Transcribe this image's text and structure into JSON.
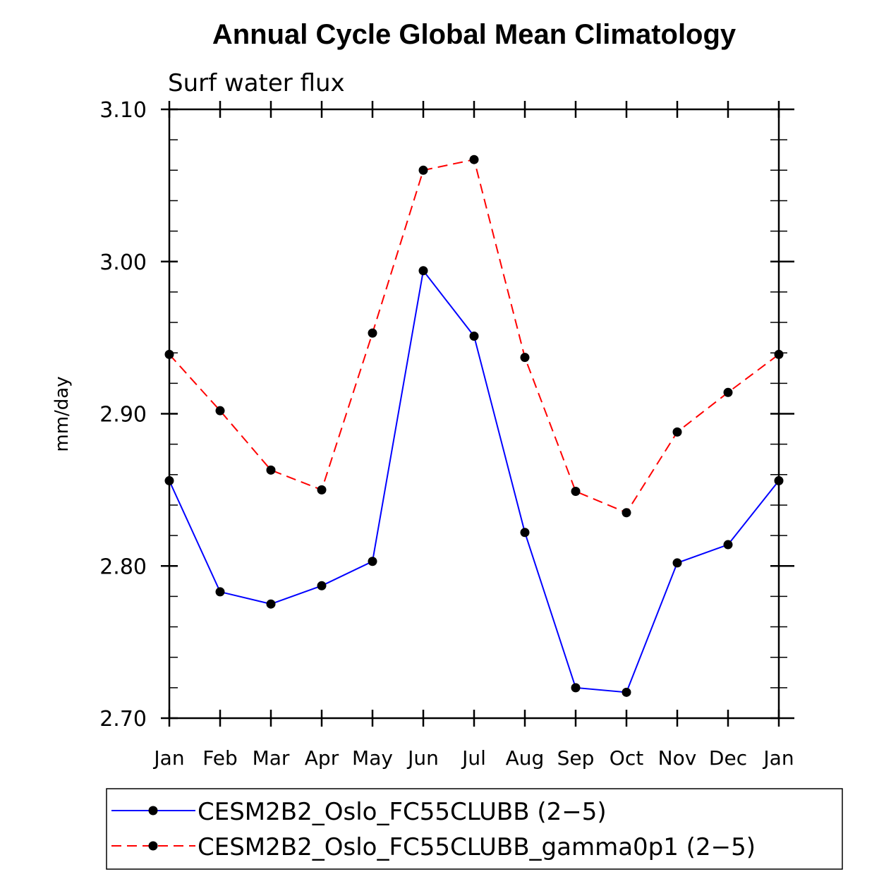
{
  "chart_data": {
    "type": "line",
    "title": "Annual Cycle Global Mean Climatology",
    "subtitle": "Surf water flux",
    "xlabel": "",
    "ylabel": "mm/day",
    "categories": [
      "Jan",
      "Feb",
      "Mar",
      "Apr",
      "May",
      "Jun",
      "Jul",
      "Aug",
      "Sep",
      "Oct",
      "Nov",
      "Dec",
      "Jan"
    ],
    "ylim": [
      2.7,
      3.1
    ],
    "yticks": [
      2.7,
      2.8,
      2.9,
      3.0,
      3.1
    ],
    "ytick_labels": [
      "2.70",
      "2.80",
      "2.90",
      "3.00",
      "3.10"
    ],
    "legend_position": "bottom",
    "series": [
      {
        "name": "CESM2B2_Oslo_FC55CLUBB (2-5)",
        "label": "CESM2B2_Oslo_FC55CLUBB (2−5)",
        "color": "#0000ff",
        "dash": "solid",
        "values": [
          2.856,
          2.783,
          2.775,
          2.787,
          2.803,
          2.994,
          2.951,
          2.822,
          2.72,
          2.717,
          2.802,
          2.814,
          2.856
        ]
      },
      {
        "name": "CESM2B2_Oslo_FC55CLUBB_gamma0p1 (2-5)",
        "label": "CESM2B2_Oslo_FC55CLUBB_gamma0p1 (2−5)",
        "color": "#ff0000",
        "dash": "dashed",
        "values": [
          2.939,
          2.902,
          2.863,
          2.85,
          2.953,
          3.06,
          3.067,
          2.937,
          2.849,
          2.835,
          2.888,
          2.914,
          2.939
        ]
      }
    ],
    "marker_color": "#000000"
  }
}
